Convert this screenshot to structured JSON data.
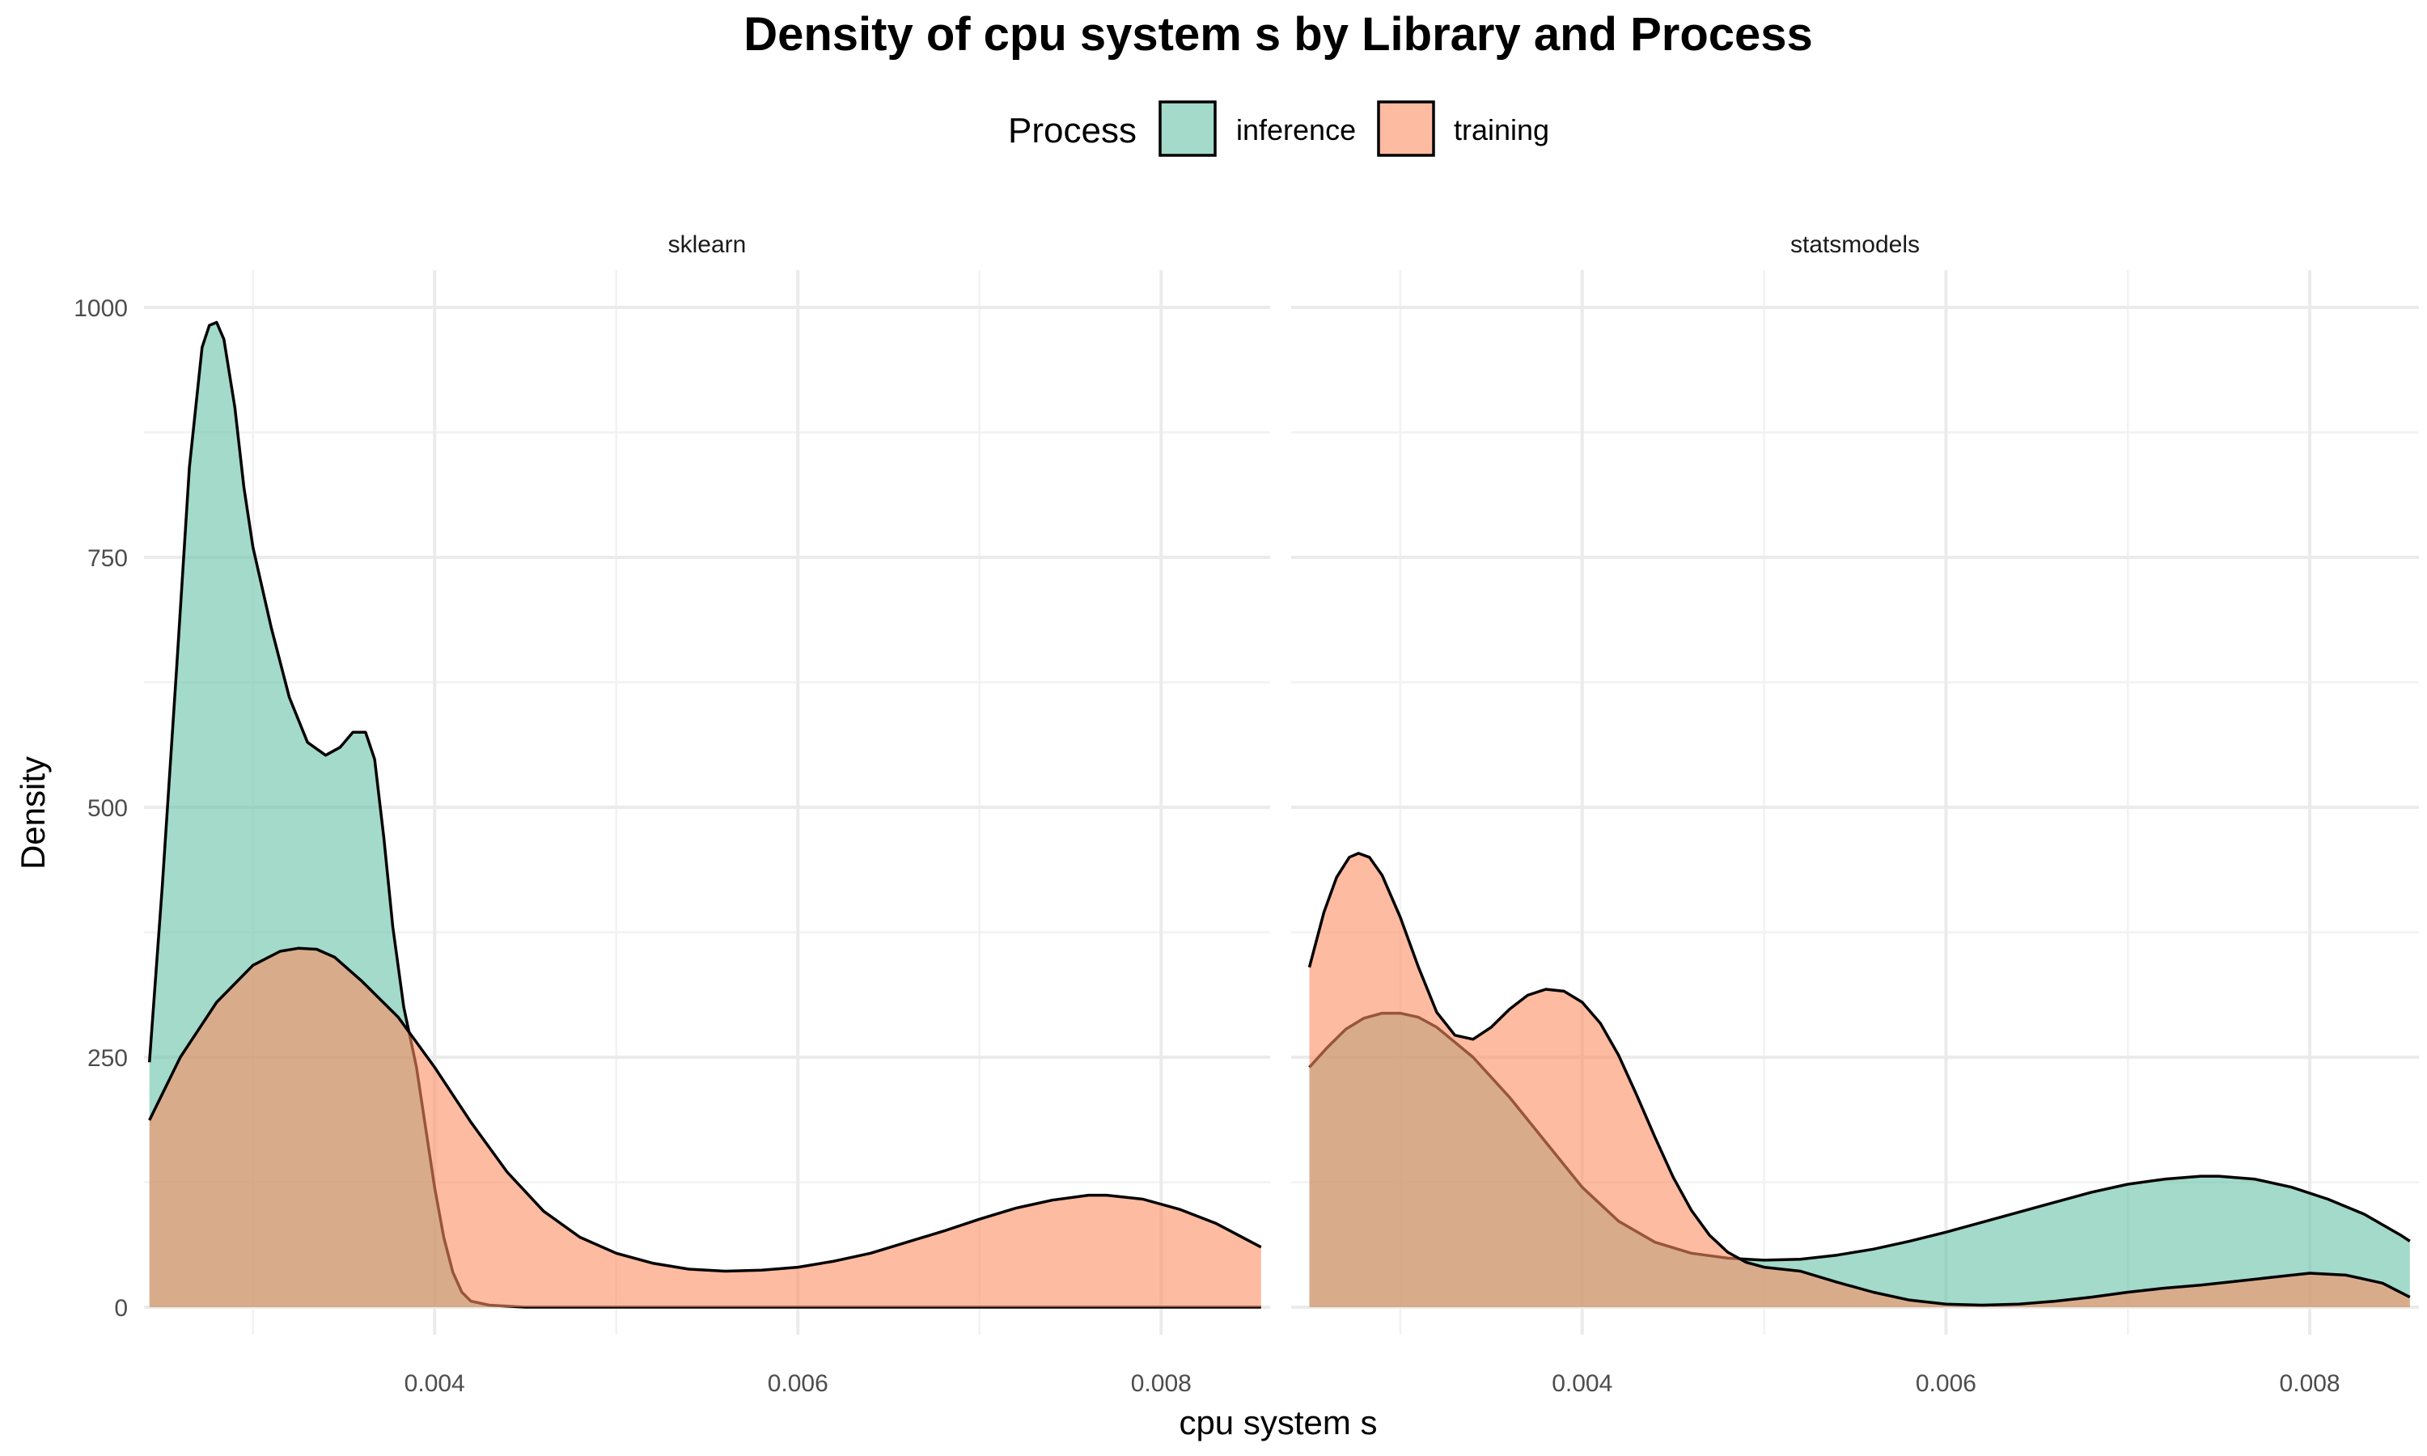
{
  "chart_data": {
    "type": "area",
    "title": "Density of cpu system s by Library and Process",
    "xlabel": "cpu system s",
    "ylabel": "Density",
    "xlim": [
      0.0024,
      0.0086
    ],
    "ylim": [
      0,
      1000
    ],
    "x_ticks": [
      0.004,
      0.006,
      0.008
    ],
    "x_tick_labels": [
      "0.004",
      "0.006",
      "0.008"
    ],
    "y_ticks": [
      0,
      250,
      500,
      750,
      1000
    ],
    "y_tick_labels": [
      "0",
      "250",
      "500",
      "750",
      "1000"
    ],
    "grid": true,
    "legend": {
      "title": "Process",
      "position": "top",
      "entries": [
        {
          "label": "inference",
          "color": "#66c2a5"
        },
        {
          "label": "training",
          "color": "#fc8d62"
        }
      ]
    },
    "panels": [
      {
        "name": "sklearn",
        "series": [
          {
            "name": "inference",
            "color": "#66c2a5",
            "x": [
              0.00243,
              0.0025,
              0.00258,
              0.00265,
              0.00272,
              0.00276,
              0.0028,
              0.00284,
              0.0029,
              0.00295,
              0.003,
              0.0031,
              0.0032,
              0.0033,
              0.0034,
              0.00348,
              0.00355,
              0.00362,
              0.00367,
              0.00372,
              0.00377,
              0.00383,
              0.0039,
              0.00395,
              0.004,
              0.00405,
              0.0041,
              0.00415,
              0.0042,
              0.0043,
              0.0044,
              0.0045,
              0.005,
              0.0055,
              0.006,
              0.0065,
              0.007,
              0.0075,
              0.008,
              0.00855
            ],
            "values": [
              245,
              420,
              640,
              840,
              960,
              982,
              985,
              968,
              900,
              820,
              760,
              680,
              610,
              565,
              552,
              560,
              575,
              575,
              548,
              470,
              380,
              300,
              240,
              180,
              120,
              70,
              35,
              15,
              6,
              2,
              1,
              0,
              0,
              0,
              0,
              0,
              0,
              0,
              0,
              0
            ]
          },
          {
            "name": "training",
            "color": "#fc8d62",
            "x": [
              0.00243,
              0.0026,
              0.0028,
              0.003,
              0.00315,
              0.00325,
              0.00335,
              0.00345,
              0.0036,
              0.0038,
              0.004,
              0.0042,
              0.0044,
              0.0046,
              0.0048,
              0.005,
              0.0052,
              0.0054,
              0.0056,
              0.0058,
              0.006,
              0.0062,
              0.0064,
              0.0066,
              0.0068,
              0.007,
              0.0072,
              0.0074,
              0.0076,
              0.0077,
              0.0079,
              0.0081,
              0.0083,
              0.00855
            ],
            "values": [
              187,
              250,
              305,
              342,
              356,
              359,
              358,
              350,
              326,
              290,
              240,
              185,
              135,
              96,
              70,
              54,
              44,
              38,
              36,
              37,
              40,
              46,
              54,
              65,
              76,
              88,
              99,
              107,
              112,
              112,
              108,
              98,
              84,
              60
            ]
          }
        ]
      },
      {
        "name": "statsmodels",
        "series": [
          {
            "name": "inference",
            "color": "#66c2a5",
            "x": [
              0.0025,
              0.0026,
              0.0027,
              0.0028,
              0.0029,
              0.003,
              0.0031,
              0.0032,
              0.0034,
              0.0036,
              0.0038,
              0.004,
              0.0042,
              0.0044,
              0.0046,
              0.0048,
              0.005,
              0.0052,
              0.0054,
              0.0056,
              0.0058,
              0.006,
              0.0062,
              0.0064,
              0.0066,
              0.0068,
              0.007,
              0.0072,
              0.0074,
              0.0075,
              0.0077,
              0.0079,
              0.0081,
              0.0083,
              0.0085,
              0.00855
            ],
            "values": [
              240,
              260,
              278,
              289,
              294,
              294,
              290,
              280,
              250,
              210,
              165,
              120,
              86,
              65,
              54,
              49,
              47,
              48,
              52,
              58,
              66,
              75,
              85,
              95,
              105,
              115,
              123,
              128,
              131,
              131,
              128,
              120,
              108,
              93,
              72,
              66
            ]
          },
          {
            "name": "training",
            "color": "#fc8d62",
            "x": [
              0.0025,
              0.00258,
              0.00265,
              0.00272,
              0.00277,
              0.00283,
              0.0029,
              0.003,
              0.0031,
              0.0032,
              0.0033,
              0.0034,
              0.0035,
              0.0036,
              0.0037,
              0.0038,
              0.0039,
              0.004,
              0.0041,
              0.0042,
              0.0043,
              0.0044,
              0.0045,
              0.0046,
              0.0047,
              0.0048,
              0.0049,
              0.005,
              0.0052,
              0.0054,
              0.0056,
              0.0058,
              0.006,
              0.0062,
              0.0064,
              0.0066,
              0.0068,
              0.007,
              0.0072,
              0.0074,
              0.0076,
              0.0078,
              0.008,
              0.0082,
              0.0084,
              0.00855
            ],
            "values": [
              340,
              395,
              430,
              450,
              454,
              450,
              432,
              390,
              340,
              295,
              272,
              268,
              280,
              298,
              312,
              318,
              316,
              305,
              284,
              252,
              212,
              170,
              130,
              97,
              72,
              55,
              45,
              40,
              36,
              25,
              15,
              7,
              3,
              2,
              3,
              6,
              10,
              15,
              19,
              22,
              26,
              30,
              34,
              32,
              24,
              10
            ]
          }
        ]
      }
    ]
  }
}
